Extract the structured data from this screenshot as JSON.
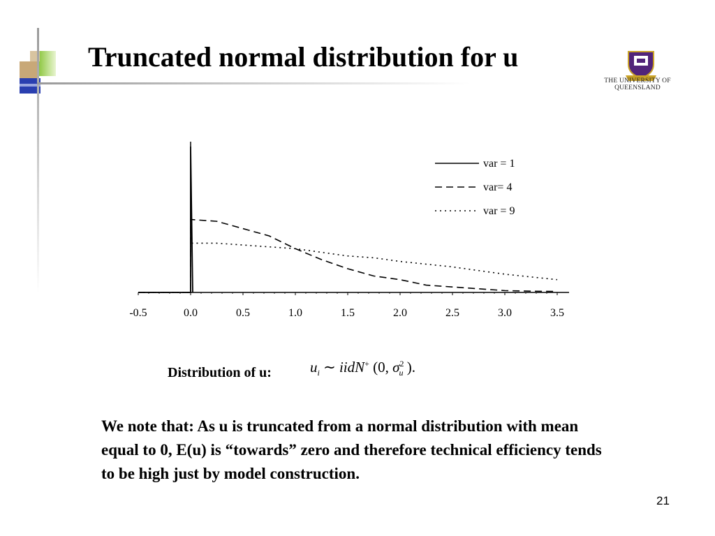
{
  "slide": {
    "title": "Truncated normal distribution for u",
    "logo_text": "THE UNIVERSITY OF QUEENSLAND",
    "page_number": "21",
    "distribution_label": "Distribution of u:",
    "formula": {
      "lhs": "u",
      "lhs_sub": "i",
      "relation": "∼",
      "iid": "iidN",
      "iid_sup": "+",
      "args_open": "(0,",
      "sigma": "σ",
      "sigma_sup": "2",
      "sigma_sub": "u",
      "args_close": ")."
    },
    "note": "We note that:  As u is truncated from a normal distribution with mean equal to 0, E(u) is “towards” zero and therefore technical efficiency tends to be high just by model construction.",
    "colors": {
      "accent_blue": "#2a3fb0",
      "accent_green": "#8cc63f",
      "accent_tan": "#c8a878",
      "line": "#000000"
    }
  },
  "chart_data": {
    "type": "line",
    "title": "",
    "xlabel": "",
    "ylabel": "",
    "xlim": [
      -0.5,
      3.5
    ],
    "x_ticks": [
      "-0.5",
      "0.0",
      "0.5",
      "1.0",
      "1.5",
      "2.0",
      "2.5",
      "3.0",
      "3.5"
    ],
    "grid": false,
    "legend_position": "top-right",
    "series": [
      {
        "name": "var = 1",
        "style": "solid",
        "x": [
          -0.5,
          0.0,
          0.0,
          0.02
        ],
        "y": [
          0,
          0,
          0.8,
          0.0
        ]
      },
      {
        "name": "var= 4",
        "style": "dashed",
        "x": [
          -0.5,
          0.0,
          0.0,
          0.25,
          0.5,
          0.75,
          1.0,
          1.25,
          1.5,
          1.75,
          2.0,
          2.25,
          2.5,
          2.75,
          3.0,
          3.25,
          3.5
        ],
        "y": [
          0,
          0,
          0.4,
          0.39,
          0.35,
          0.31,
          0.24,
          0.18,
          0.13,
          0.09,
          0.07,
          0.04,
          0.03,
          0.02,
          0.01,
          0.007,
          0.005
        ]
      },
      {
        "name": "var = 9",
        "style": "dotted",
        "x": [
          -0.5,
          0.0,
          0.0,
          0.25,
          0.5,
          0.75,
          1.0,
          1.25,
          1.5,
          1.75,
          2.0,
          2.25,
          2.5,
          2.75,
          3.0,
          3.25,
          3.5
        ],
        "y": [
          0,
          0,
          0.27,
          0.27,
          0.26,
          0.25,
          0.24,
          0.22,
          0.2,
          0.19,
          0.17,
          0.155,
          0.14,
          0.12,
          0.1,
          0.085,
          0.07
        ]
      }
    ]
  }
}
